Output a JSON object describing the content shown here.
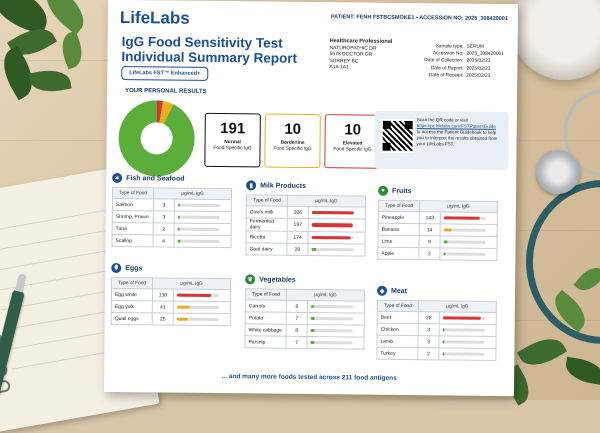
{
  "header": {
    "logo": "LifeLabs",
    "patient_line": "PATIENT: FENH FSTBCSMOKE1 • ACCESSION NO: 2025_308420001",
    "title": "IgG Food Sensitivity Test Individual Summary Report",
    "badge": "LifeLabs FST™ Enhanced+"
  },
  "provider": {
    "heading": "Healthcare Professional",
    "lines": [
      "NATUROPATHIC DR",
      "5678 DOCTOR DR",
      "SURREY BC",
      "A1A 1A1"
    ]
  },
  "sample": [
    {
      "k": "Sample type:",
      "v": "SERUM"
    },
    {
      "k": "Accession No:",
      "v": "2025_308420001"
    },
    {
      "k": "Date of Collection:",
      "v": "2025/02/23"
    },
    {
      "k": "Date of Report:",
      "v": "2025/02/23"
    },
    {
      "k": "Date of Receipt:",
      "v": "2025/02/23"
    }
  ],
  "results": {
    "label": "YOUR PERSONAL RESULTS",
    "normal": {
      "count": "191",
      "label": "Normal",
      "sub": "Food Specific IgG",
      "color": "#5cae3a"
    },
    "borderline": {
      "count": "10",
      "label": "Borderline",
      "sub": "Food Specific IgG",
      "color": "#e6b020"
    },
    "elevated": {
      "count": "10",
      "label": "Elevated",
      "sub": "Food Specific IgG",
      "color": "#d33333"
    }
  },
  "qr": {
    "line1": "Scan the QR code or visit",
    "link": "https://pc.lifelabs.com/FSTPatientGuide",
    "line2": "to access the Patient Guidebook to help you to interpret the results obtained from your LifeLabs FST."
  },
  "table_headers": {
    "food": "Type of Food",
    "unit": "μg/mL IgG"
  },
  "sections": {
    "fish": {
      "title": "Fish and Seafood",
      "icon": "fish-icon",
      "rows": [
        {
          "food": "Salmon",
          "val": "3",
          "level": 0.05,
          "cls": "n"
        },
        {
          "food": "Shrimp, Prawn",
          "val": "3",
          "level": 0.05,
          "cls": "n"
        },
        {
          "food": "Tuna",
          "val": "2",
          "level": 0.04,
          "cls": "n"
        },
        {
          "food": "Scallop",
          "val": "4",
          "level": 0.06,
          "cls": "n"
        }
      ]
    },
    "milk": {
      "title": "Milk Products",
      "icon": "milk-icon",
      "rows": [
        {
          "food": "Cow's milk",
          "val": "206",
          "level": 1.0,
          "cls": "e"
        },
        {
          "food": "Fermented dairy",
          "val": "197",
          "level": 0.97,
          "cls": "e"
        },
        {
          "food": "Ricotta",
          "val": "174",
          "level": 0.92,
          "cls": "e"
        },
        {
          "food": "Goat dairy",
          "val": "20",
          "level": 0.12,
          "cls": "n"
        }
      ]
    },
    "fruits": {
      "title": "Fruits",
      "icon": "apple-icon",
      "rows": [
        {
          "food": "Pineapple",
          "val": "143",
          "level": 0.85,
          "cls": "e"
        },
        {
          "food": "Banana",
          "val": "14",
          "level": 0.2,
          "cls": "b"
        },
        {
          "food": "Lime",
          "val": "9",
          "level": 0.1,
          "cls": "n"
        },
        {
          "food": "Apple",
          "val": "2",
          "level": 0.04,
          "cls": "n"
        }
      ]
    },
    "eggs": {
      "title": "Eggs",
      "icon": "egg-icon",
      "rows": [
        {
          "food": "Egg white",
          "val": "130",
          "level": 0.8,
          "cls": "e"
        },
        {
          "food": "Egg yolk",
          "val": "41",
          "level": 0.3,
          "cls": "b"
        },
        {
          "food": "Quail eggs",
          "val": "25",
          "level": 0.25,
          "cls": "b"
        }
      ]
    },
    "veg": {
      "title": "Vegetables",
      "icon": "leaf-icon",
      "rows": [
        {
          "food": "Carrots",
          "val": "6",
          "level": 0.08,
          "cls": "n"
        },
        {
          "food": "Potato",
          "val": "7",
          "level": 0.09,
          "cls": "n"
        },
        {
          "food": "White cabbage",
          "val": "8",
          "level": 0.1,
          "cls": "n"
        },
        {
          "food": "Parsnip",
          "val": "7",
          "level": 0.09,
          "cls": "n"
        }
      ]
    },
    "meat": {
      "title": "Meat",
      "icon": "meat-icon",
      "rows": [
        {
          "food": "Beef",
          "val": "28",
          "level": 0.9,
          "cls": "e"
        },
        {
          "food": "Chicken",
          "val": "3",
          "level": 0.05,
          "cls": "n"
        },
        {
          "food": "Lamb",
          "val": "3",
          "level": 0.05,
          "cls": "n"
        },
        {
          "food": "Turkey",
          "val": "2",
          "level": 0.04,
          "cls": "n"
        }
      ]
    }
  },
  "footer": "... and many more foods tested across 211 food antigens"
}
